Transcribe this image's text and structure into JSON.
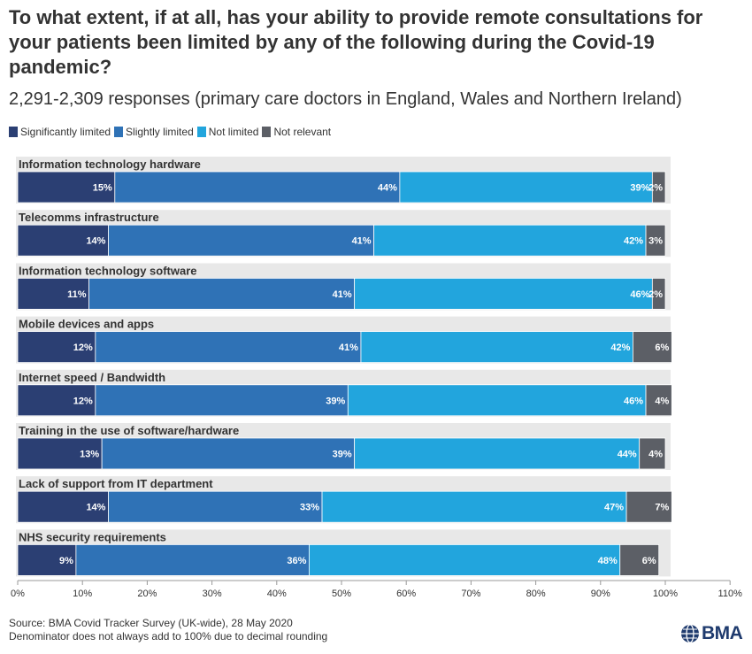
{
  "title": "To what extent, if at all, has your ability to provide remote consultations for your patients been limited by any of the following during the Covid-19 pandemic?",
  "subtitle": "2,291-2,309 responses (primary care doctors in England, Wales and Northern Ireland)",
  "footer": {
    "source": "Source: BMA Covid Tracker Survey (UK-wide), 28 May 2020",
    "note": "Denominator does not always add to 100% due to decimal rounding"
  },
  "logo": {
    "text": "BMA"
  },
  "colors": {
    "significantly_limited": "#2b3f73",
    "slightly_limited": "#2f72b6",
    "not_limited": "#22a5dd",
    "not_relevant": "#5c5f66",
    "row_background": "#e8e8e8",
    "axis": "#999999"
  },
  "chart_data": {
    "type": "bar",
    "orientation": "horizontal",
    "stacked": true,
    "categories": [
      "Information technology hardware",
      "Telecomms infrastructure",
      "Information technology software",
      "Mobile devices and apps",
      "Internet speed / Bandwidth",
      "Training in the use of software/hardware",
      "Lack of support from IT department",
      "NHS security requirements"
    ],
    "series": [
      {
        "name": "Significantly limited",
        "values": [
          15,
          14,
          11,
          12,
          12,
          13,
          14,
          9
        ]
      },
      {
        "name": "Slightly limited",
        "values": [
          44,
          41,
          41,
          41,
          39,
          39,
          33,
          36
        ]
      },
      {
        "name": "Not limited",
        "values": [
          39,
          42,
          46,
          42,
          46,
          44,
          47,
          48
        ]
      },
      {
        "name": "Not relevant",
        "values": [
          2,
          3,
          2,
          6,
          4,
          4,
          7,
          6
        ]
      }
    ],
    "value_labels": [
      [
        "15%",
        "44%",
        "39%",
        "2%"
      ],
      [
        "14%",
        "41%",
        "42%",
        "3%"
      ],
      [
        "11%",
        "41%",
        "46%",
        "2%"
      ],
      [
        "12%",
        "41%",
        "42%",
        "6%"
      ],
      [
        "12%",
        "39%",
        "46%",
        "4%"
      ],
      [
        "13%",
        "39%",
        "44%",
        "4%"
      ],
      [
        "14%",
        "33%",
        "47%",
        "7%"
      ],
      [
        "9%",
        "36%",
        "48%",
        "6%"
      ]
    ],
    "xlim": [
      0,
      110
    ],
    "xticks": [
      "0%",
      "10%",
      "20%",
      "30%",
      "40%",
      "50%",
      "60%",
      "70%",
      "80%",
      "90%",
      "100%",
      "110%"
    ],
    "legend_position": "top-left",
    "grid": false
  }
}
